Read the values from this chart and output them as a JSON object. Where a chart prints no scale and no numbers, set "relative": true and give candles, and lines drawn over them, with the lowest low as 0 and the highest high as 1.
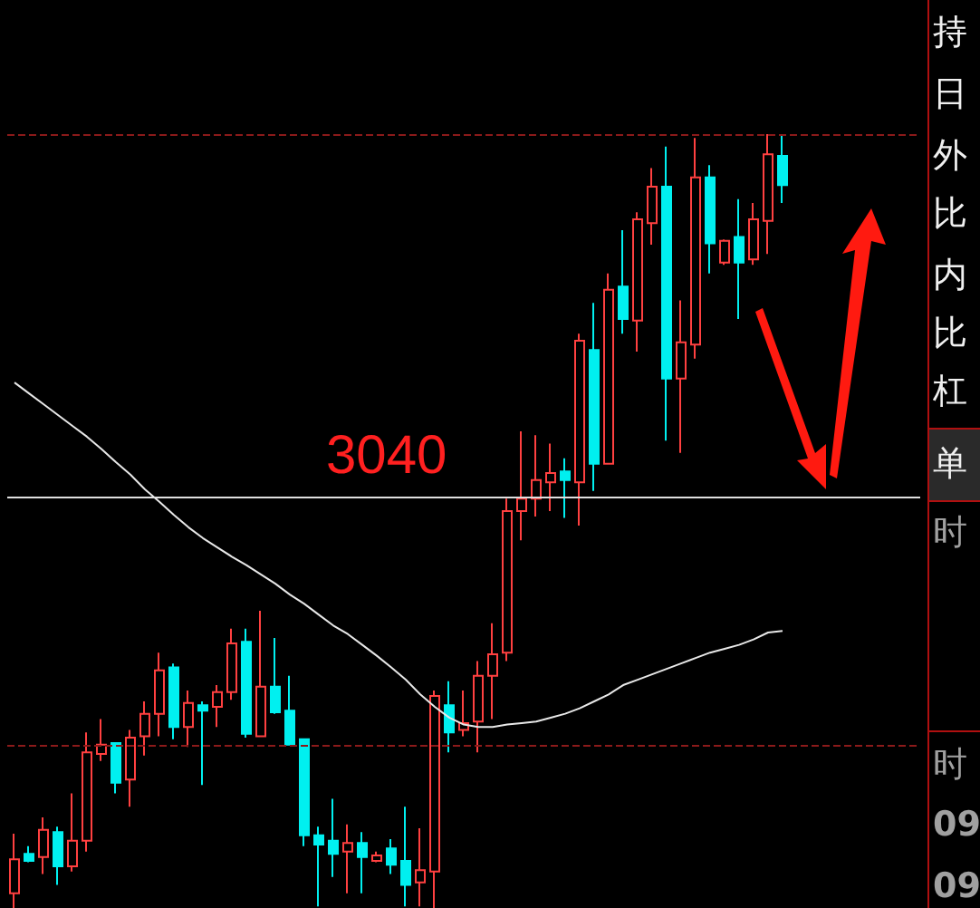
{
  "chart_data": {
    "type": "candlestick",
    "relative": true,
    "categories": [
      null,
      null,
      null,
      null,
      null,
      null,
      null,
      null,
      null,
      null,
      null,
      null,
      null,
      null,
      null,
      null,
      null,
      null,
      null,
      null,
      null,
      null,
      null,
      null,
      null,
      null,
      null,
      null,
      null,
      null,
      null,
      null,
      null,
      null,
      null,
      null,
      null,
      null,
      null,
      null,
      null,
      null,
      null,
      null,
      null,
      null,
      null,
      null,
      null,
      null,
      null,
      null,
      null,
      null,
      null,
      null,
      null,
      null,
      null,
      null,
      null,
      null,
      null
    ],
    "ohlc": [
      [
        0.019,
        0.096,
        0,
        0.063
      ],
      [
        0.07,
        0.08,
        0.059,
        0.061
      ],
      [
        0.066,
        0.117,
        0.044,
        0.101
      ],
      [
        0.098,
        0.105,
        0.03,
        0.054
      ],
      [
        0.054,
        0.148,
        0.047,
        0.087
      ],
      [
        0.087,
        0.227,
        0.073,
        0.201
      ],
      [
        0.199,
        0.244,
        0.19,
        0.211
      ],
      [
        0.213,
        0.213,
        0.148,
        0.162
      ],
      [
        0.166,
        0.23,
        0.131,
        0.22
      ],
      [
        0.222,
        0.267,
        0.197,
        0.251
      ],
      [
        0.251,
        0.33,
        0.222,
        0.307
      ],
      [
        0.311,
        0.316,
        0.218,
        0.234
      ],
      [
        0.234,
        0.281,
        0.208,
        0.265
      ],
      [
        0.262,
        0.267,
        0.159,
        0.255
      ],
      [
        0.26,
        0.288,
        0.234,
        0.279
      ],
      [
        0.279,
        0.361,
        0.269,
        0.342
      ],
      [
        0.344,
        0.361,
        0.22,
        0.225
      ],
      [
        0.222,
        0.384,
        0.222,
        0.286
      ],
      [
        0.286,
        0.349,
        0.251,
        0.253
      ],
      [
        0.255,
        0.3,
        0.211,
        0.211
      ],
      [
        0.218,
        0.218,
        0.08,
        0.094
      ],
      [
        0.094,
        0.105,
        0.002,
        0.082
      ],
      [
        0.087,
        0.141,
        0.04,
        0.07
      ],
      [
        0.073,
        0.108,
        0.019,
        0.084
      ],
      [
        0.084,
        0.098,
        0.019,
        0.066
      ],
      [
        0.061,
        0.073,
        0.059,
        0.068
      ],
      [
        0.077,
        0.089,
        0.044,
        0.056
      ],
      [
        0.061,
        0.131,
        0.002,
        0.03
      ],
      [
        0.033,
        0.103,
        0.002,
        0.049
      ],
      [
        0.047,
        0.281,
        0,
        0.274
      ],
      [
        0.262,
        0.293,
        0.201,
        0.227
      ],
      [
        0.23,
        0.281,
        0.222,
        0.239
      ],
      [
        0.241,
        0.319,
        0.201,
        0.3
      ],
      [
        0.3,
        0.368,
        0.244,
        0.328
      ],
      [
        0.33,
        0.529,
        0.319,
        0.513
      ],
      [
        0.513,
        0.616,
        0.475,
        0.529
      ],
      [
        0.529,
        0.611,
        0.506,
        0.553
      ],
      [
        0.55,
        0.6,
        0.513,
        0.562
      ],
      [
        0.564,
        0.581,
        0.504,
        0.553
      ],
      [
        0.55,
        0.742,
        0.494,
        0.733
      ],
      [
        0.721,
        0.782,
        0.539,
        0.574
      ],
      [
        0.574,
        0.82,
        0.574,
        0.799
      ],
      [
        0.803,
        0.876,
        0.742,
        0.761
      ],
      [
        0.759,
        0.899,
        0.719,
        0.89
      ],
      [
        0.885,
        0.956,
        0.857,
        0.932
      ],
      [
        0.932,
        0.984,
        0.604,
        0.684
      ],
      [
        0.684,
        0.785,
        0.588,
        0.731
      ],
      [
        0.728,
        0.995,
        0.71,
        0.944
      ],
      [
        0.944,
        0.96,
        0.82,
        0.859
      ],
      [
        0.834,
        0.864,
        0.831,
        0.862
      ],
      [
        0.867,
        0.916,
        0.761,
        0.834
      ],
      [
        0.838,
        0.911,
        0.831,
        0.89
      ],
      [
        0.888,
        1,
        0.845,
        0.974
      ],
      [
        0.972,
        1,
        0.911,
        0.934
      ],
      null,
      null,
      null,
      null,
      null,
      null,
      null,
      null,
      null
    ],
    "colors": [
      "#ff4040",
      "#00f0f0",
      "#ff4040",
      "#00f0f0",
      "#ff4040",
      "#ff4040",
      "#ff4040",
      "#00f0f0",
      "#ff4040",
      "#ff4040",
      "#ff4040",
      "#00f0f0",
      "#ff4040",
      "#00f0f0",
      "#ff4040",
      "#ff4040",
      "#00f0f0",
      "#ff4040",
      "#00f0f0",
      "#00f0f0",
      "#00f0f0",
      "#00f0f0",
      "#00f0f0",
      "#ff4040",
      "#00f0f0",
      "#ff4040",
      "#00f0f0",
      "#00f0f0",
      "#ff4040",
      "#ff4040",
      "#00f0f0",
      "#ff4040",
      "#ff4040",
      "#ff4040",
      "#ff4040",
      "#ff4040",
      "#ff4040",
      "#ff4040",
      "#00f0f0",
      "#ff4040",
      "#00f0f0",
      "#ff4040",
      "#00f0f0",
      "#ff4040",
      "#ff4040",
      "#00f0f0",
      "#ff4040",
      "#ff4040",
      "#00f0f0",
      "#ff4040",
      "#00f0f0",
      "#ff4040",
      "#ff4040",
      "#00f0f0",
      null,
      null,
      null,
      null,
      null,
      null,
      null,
      null,
      null
    ],
    "series": [
      {
        "type": "line",
        "color": "#e8e8e8",
        "marker": "none",
        "line_style": "solid",
        "values": [
          0.679,
          0.665,
          0.651,
          0.637,
          0.623,
          0.609,
          0.593,
          0.576,
          0.56,
          0.541,
          0.525,
          0.508,
          0.492,
          0.478,
          0.466,
          0.454,
          0.443,
          0.431,
          0.419,
          0.405,
          0.393,
          0.379,
          0.365,
          0.354,
          0.34,
          0.326,
          0.311,
          0.295,
          0.276,
          0.26,
          0.246,
          0.237,
          0.234,
          0.234,
          0.237,
          0.239,
          0.241,
          0.246,
          0.251,
          0.258,
          0.267,
          0.276,
          0.288,
          0.295,
          0.302,
          0.309,
          0.316,
          0.323,
          0.33,
          0.335,
          0.34,
          0.347,
          0.356,
          0.358,
          null,
          null,
          null,
          null,
          null,
          null,
          null,
          null,
          null
        ]
      }
    ],
    "ref_lines": [
      {
        "axis": "y",
        "value": 0.53,
        "color": "#e0e0e0",
        "line_style": "solid"
      },
      {
        "axis": "y",
        "value": 0.998,
        "color": "#8b1a1a",
        "line_style": "dashed"
      },
      {
        "axis": "y",
        "value": 0.208,
        "color": "#8b1a1a",
        "line_style": "dashed"
      }
    ],
    "annotations": [
      "3040",
      "持",
      "日",
      "外",
      "比",
      "内",
      "比",
      "杠",
      "单",
      "时",
      "时",
      "09",
      "09"
    ]
  }
}
